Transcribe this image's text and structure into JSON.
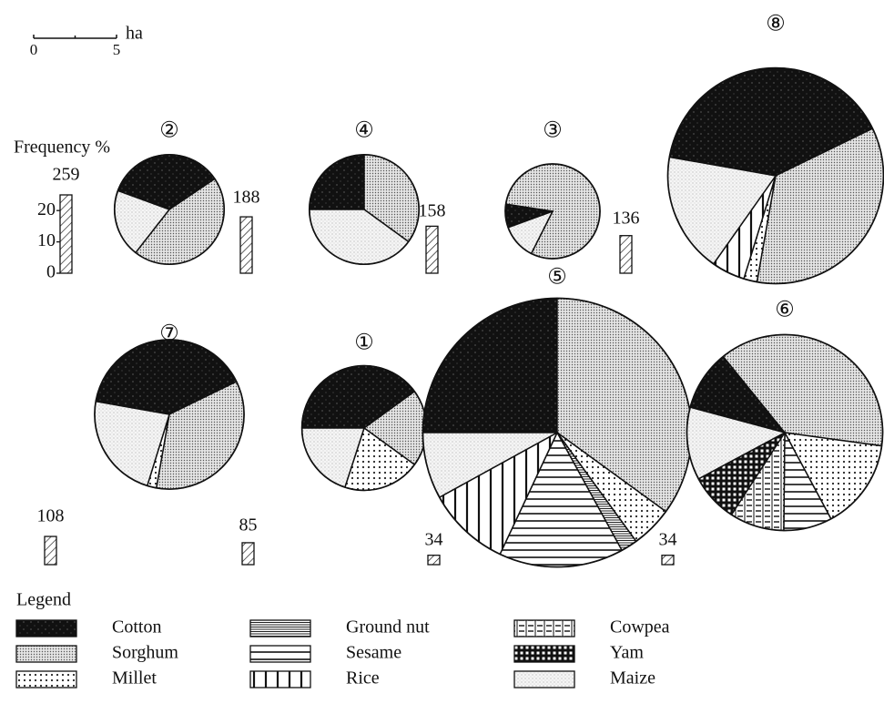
{
  "scale": {
    "ticks": [
      0,
      5
    ],
    "unit": "ha"
  },
  "legend": {
    "title": "Legend",
    "items": [
      "Cotton",
      "Sorghum",
      "Millet",
      "Ground nut",
      "Sesame",
      "Rice",
      "Cowpea",
      "Yam",
      "Maize"
    ]
  },
  "chart_data": [
    {
      "type": "bar",
      "ylabel": "Frequency %",
      "values": [
        25,
        18,
        15,
        12,
        9,
        7,
        3,
        3
      ],
      "counts": [
        259,
        188,
        158,
        136,
        108,
        85,
        34,
        34
      ],
      "ylim": [
        0,
        25
      ],
      "yticks": [
        0,
        10,
        20
      ]
    },
    {
      "type": "pie",
      "title": "②",
      "size": 6.6,
      "values": [
        35,
        45,
        0,
        0,
        0,
        0,
        0,
        0,
        20
      ]
    },
    {
      "type": "pie",
      "title": "④",
      "size": 6.6,
      "values": [
        25,
        35,
        0,
        0,
        0,
        0,
        0,
        0,
        40
      ]
    },
    {
      "type": "pie",
      "title": "③",
      "size": 5.7,
      "values": [
        8,
        80,
        0,
        0,
        0,
        0,
        0,
        0,
        12
      ]
    },
    {
      "type": "pie",
      "title": "⑧",
      "size": 13,
      "values": [
        40,
        35,
        2,
        0,
        0,
        5,
        0,
        0,
        18
      ]
    },
    {
      "type": "pie",
      "title": "⑦",
      "size": 9,
      "values": [
        40,
        35,
        2,
        0,
        0,
        0,
        0,
        0,
        23
      ]
    },
    {
      "type": "pie",
      "title": "①",
      "size": 7.5,
      "values": [
        40,
        20,
        20,
        0,
        0,
        0,
        0,
        0,
        20
      ]
    },
    {
      "type": "pie",
      "title": "⑤",
      "size": 16.2,
      "values": [
        25,
        35,
        5,
        2,
        15,
        10,
        0,
        0,
        8
      ]
    },
    {
      "type": "pie",
      "title": "⑥",
      "size": 11.8,
      "values": [
        10,
        38,
        15,
        0,
        8,
        0,
        9,
        8,
        12
      ]
    }
  ]
}
